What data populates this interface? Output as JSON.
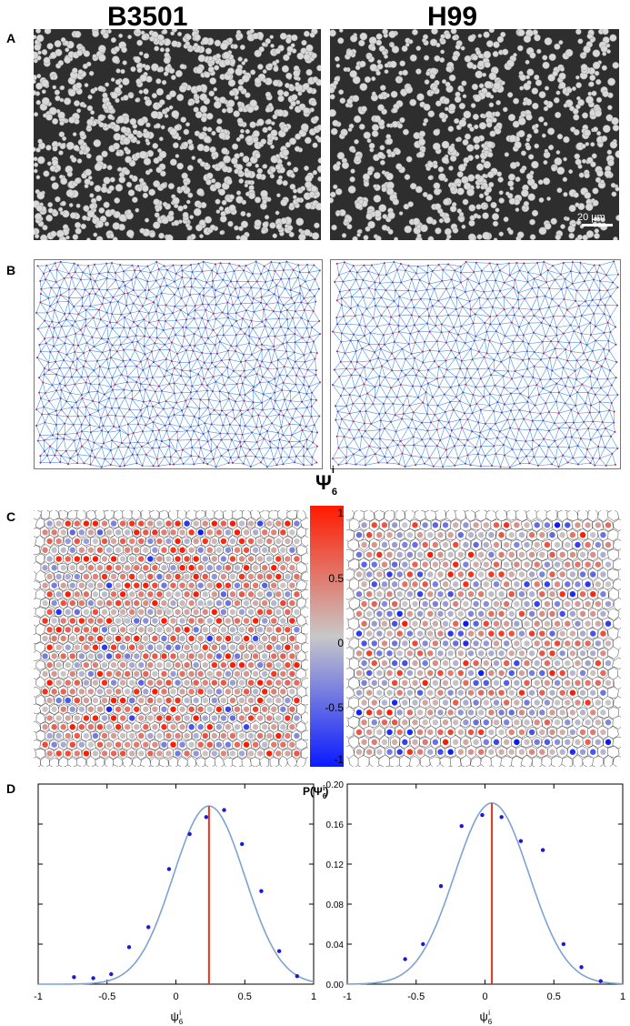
{
  "strains": {
    "left": "B3501",
    "right": "H99"
  },
  "panels": {
    "a": "A",
    "b": "B",
    "c": "C",
    "d": "D"
  },
  "scalebar": {
    "label": "20 µm"
  },
  "colorbar": {
    "title": "Ψ",
    "title_sub": "6",
    "title_sup": "i",
    "ticks": [
      "1",
      "0.5",
      "0",
      "-0.5",
      "-1"
    ],
    "colors": {
      "high": "#ff1a00",
      "mid": "#c8c8c8",
      "low": "#0a1aff"
    }
  },
  "chart_data": [
    {
      "type": "scatter",
      "name": "B3501",
      "xlim": [
        -1,
        1
      ],
      "ylim": [
        0,
        0.2
      ],
      "xticks": [
        "-1",
        "-0.5",
        "0",
        "0.5",
        "1"
      ],
      "xlabel": "ψ",
      "xlabel_sub": "6",
      "xlabel_sup": "i",
      "points": [
        {
          "x": -0.74,
          "y": 0.007
        },
        {
          "x": -0.6,
          "y": 0.006
        },
        {
          "x": -0.47,
          "y": 0.01
        },
        {
          "x": -0.34,
          "y": 0.037
        },
        {
          "x": -0.2,
          "y": 0.057
        },
        {
          "x": -0.05,
          "y": 0.115
        },
        {
          "x": 0.1,
          "y": 0.15
        },
        {
          "x": 0.22,
          "y": 0.167
        },
        {
          "x": 0.35,
          "y": 0.174
        },
        {
          "x": 0.48,
          "y": 0.14
        },
        {
          "x": 0.62,
          "y": 0.093
        },
        {
          "x": 0.75,
          "y": 0.033
        },
        {
          "x": 0.88,
          "y": 0.008
        }
      ],
      "gaussian": {
        "mean": 0.24,
        "sd": 0.26,
        "peak": 0.178
      },
      "mean_line": 0.24,
      "colors": {
        "points": "#1a1ad6",
        "curve": "#7ea2d4",
        "mean": "#e8331a"
      }
    },
    {
      "type": "scatter",
      "name": "H99",
      "xlim": [
        -1,
        1
      ],
      "ylim": [
        0,
        0.2
      ],
      "xticks": [
        "-1",
        "-0.5",
        "0",
        "0.5",
        "1"
      ],
      "yticks": [
        "0.00",
        "0.04",
        "0.08",
        "0.12",
        "0.16",
        "0.20"
      ],
      "ylabel": "P(Ψ",
      "ylabel_sub": "6",
      "ylabel_sup": "i",
      "ylabel_close": ")",
      "xlabel": "ψ",
      "xlabel_sub": "6",
      "xlabel_sup": "i",
      "points": [
        {
          "x": -0.58,
          "y": 0.025
        },
        {
          "x": -0.45,
          "y": 0.04
        },
        {
          "x": -0.32,
          "y": 0.098
        },
        {
          "x": -0.17,
          "y": 0.158
        },
        {
          "x": -0.02,
          "y": 0.169
        },
        {
          "x": 0.12,
          "y": 0.167
        },
        {
          "x": 0.26,
          "y": 0.143
        },
        {
          "x": 0.42,
          "y": 0.134
        },
        {
          "x": 0.57,
          "y": 0.04
        },
        {
          "x": 0.7,
          "y": 0.017
        },
        {
          "x": 0.84,
          "y": 0.003
        }
      ],
      "gaussian": {
        "mean": 0.05,
        "sd": 0.27,
        "peak": 0.181
      },
      "mean_line": 0.05,
      "colors": {
        "points": "#1a1ad6",
        "curve": "#7ea2d4",
        "mean": "#e8331a"
      }
    }
  ]
}
